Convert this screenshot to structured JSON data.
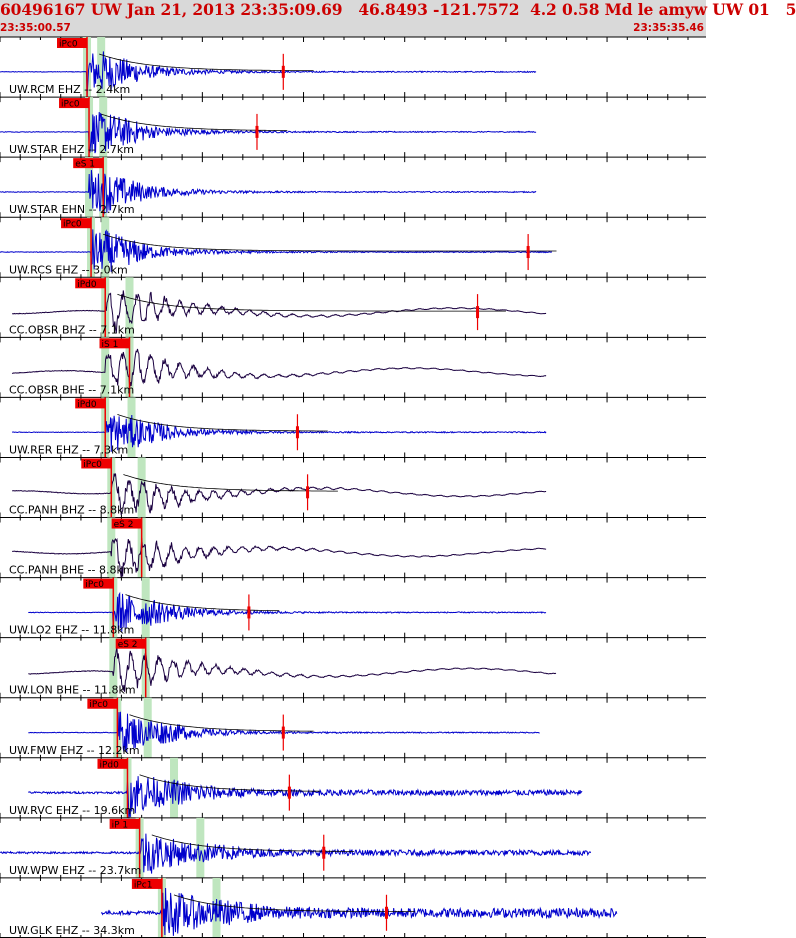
{
  "header": {
    "title": "60496167 UW Jan 21, 2013 23:35:09.69   46.8493 -121.7572  4.2 0.58 Md le amyw UW 01   5",
    "time_start": "23:35:00.57",
    "time_end": "23:35:35.46"
  },
  "colors": {
    "header_bg": "#d9d9d9",
    "header_text": "#cc0000",
    "trace_short_period": "#0000cc",
    "trace_broadband": "#1a0040",
    "pick": "#ee0000",
    "window": "#bfe6bf",
    "coda_fit": "#000000"
  },
  "chart_data": {
    "type": "seismogram",
    "time_range": [
      "23:35:00.57",
      "23:35:35.46"
    ],
    "duration_s": 34.89,
    "traces": [
      {
        "label": "UW.RCM EHZ -- 2.4km",
        "phase": "iPc0",
        "channel_type": "short-period",
        "dist_km": 2.4,
        "p_s": 4.3,
        "s_s": 5.0,
        "amp_s": 14.0,
        "end_s": 26.5
      },
      {
        "label": "UW.STAR EHZ -- 2.7km",
        "phase": "iPc0",
        "channel_type": "short-period",
        "dist_km": 2.7,
        "p_s": 4.4,
        "s_s": 5.1,
        "amp_s": 12.7,
        "end_s": 26.5
      },
      {
        "label": "UW.STAR EHN -- 2.7km",
        "phase": "eS 1",
        "channel_type": "short-period",
        "dist_km": 2.7,
        "p_s": 4.4,
        "s_s": 5.1,
        "amp_s": null,
        "end_s": 26.5
      },
      {
        "label": "UW.RCS EHZ -- 3.0km",
        "phase": "iPc0",
        "channel_type": "short-period",
        "dist_km": 3.0,
        "p_s": 4.5,
        "s_s": 5.2,
        "amp_s": 26.1,
        "end_s": 27.3
      },
      {
        "label": "CC.OBSR BHZ -- 7.1km",
        "phase": "iPd0",
        "channel_type": "broadband",
        "dist_km": 7.1,
        "p_s": 5.2,
        "s_s": 6.4,
        "amp_s": 23.6,
        "end_s": 27.0
      },
      {
        "label": "CC.OBSR BHE -- 7.1km",
        "phase": "iS 1",
        "channel_type": "broadband",
        "dist_km": 7.1,
        "p_s": 5.2,
        "s_s": 6.4,
        "amp_s": null,
        "end_s": 27.0
      },
      {
        "label": "UW.RER EHZ -- 7.3km",
        "phase": "iPd0",
        "channel_type": "short-period",
        "dist_km": 7.3,
        "p_s": 5.2,
        "s_s": 6.5,
        "amp_s": 14.7,
        "end_s": 27.0
      },
      {
        "label": "CC.PANH BHZ -- 8.8km",
        "phase": "iPc0",
        "channel_type": "broadband",
        "dist_km": 8.8,
        "p_s": 5.5,
        "s_s": 7.0,
        "amp_s": 15.2,
        "end_s": 27.0
      },
      {
        "label": "CC.PANH BHE -- 8.8km",
        "phase": "eS 2",
        "channel_type": "broadband",
        "dist_km": 8.8,
        "p_s": 5.5,
        "s_s": 7.0,
        "amp_s": null,
        "end_s": 27.0
      },
      {
        "label": "UW.LO2 EHZ -- 11.8km",
        "phase": "iPc0",
        "channel_type": "short-period",
        "dist_km": 11.8,
        "p_s": 5.6,
        "s_s": 7.2,
        "amp_s": 12.3,
        "end_s": 27.0
      },
      {
        "label": "UW.LON BHE -- 11.8km",
        "phase": "eS 2",
        "channel_type": "broadband",
        "dist_km": 11.8,
        "p_s": 5.6,
        "s_s": 7.2,
        "amp_s": null,
        "end_s": 27.5
      },
      {
        "label": "UW.FMW EHZ -- 12.2km",
        "phase": "iPc0",
        "channel_type": "short-period",
        "dist_km": 12.2,
        "p_s": 5.8,
        "s_s": 7.3,
        "amp_s": 14.0,
        "end_s": 26.7
      },
      {
        "label": "UW.RVC EHZ -- 19.6km",
        "phase": "iPd0",
        "channel_type": "short-period",
        "dist_km": 19.6,
        "p_s": 6.3,
        "s_s": 8.6,
        "amp_s": 14.3,
        "end_s": 28.8
      },
      {
        "label": "UW.WPW EHZ -- 23.7km",
        "phase": "iP 1",
        "channel_type": "short-period",
        "dist_km": 23.7,
        "p_s": 6.9,
        "s_s": 9.9,
        "amp_s": 16.0,
        "end_s": 29.2
      },
      {
        "label": "UW.GLK EHZ -- 34.3km",
        "phase": "iPc1",
        "channel_type": "short-period",
        "dist_km": 34.3,
        "p_s": 8.0,
        "s_s": 10.7,
        "amp_s": 19.1,
        "end_s": 30.5
      }
    ]
  }
}
